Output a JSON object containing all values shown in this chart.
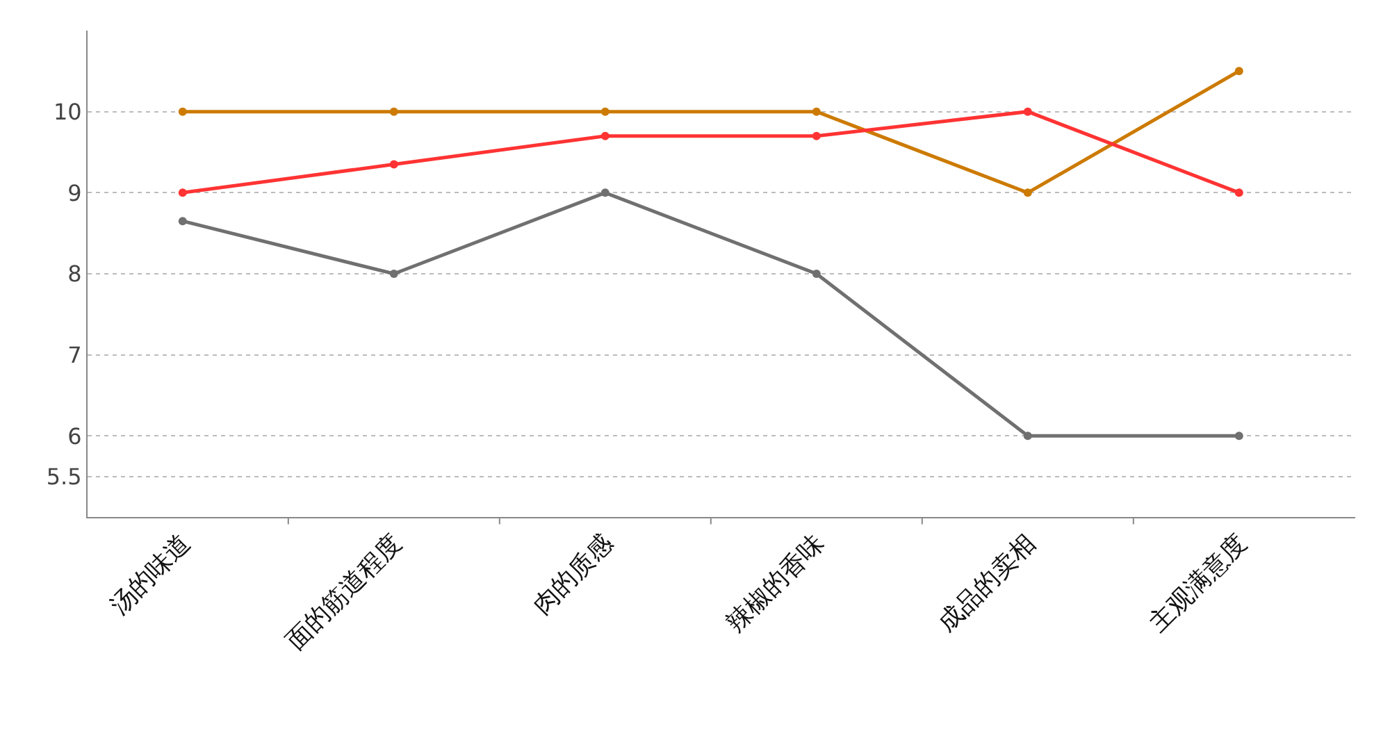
{
  "chart_data": {
    "type": "line",
    "categories": [
      "汤的味道",
      "面的筋道程度",
      "肉的质感",
      "辣椒的香味",
      "成品的卖相",
      "主观满意度"
    ],
    "series": [
      {
        "color": "#cc7a00",
        "values": [
          10,
          10,
          10,
          10,
          9,
          10.5
        ]
      },
      {
        "color": "#ff3333",
        "values": [
          9,
          9.35,
          9.7,
          9.7,
          10,
          9
        ]
      },
      {
        "color": "#707070",
        "values": [
          8.65,
          8,
          9,
          8,
          6,
          6
        ]
      }
    ],
    "ylim": [
      5,
      11
    ],
    "yticks": [
      5.5,
      6,
      7,
      8,
      9,
      10
    ],
    "grid": "y",
    "marker": "circle",
    "line_style": "solid"
  }
}
